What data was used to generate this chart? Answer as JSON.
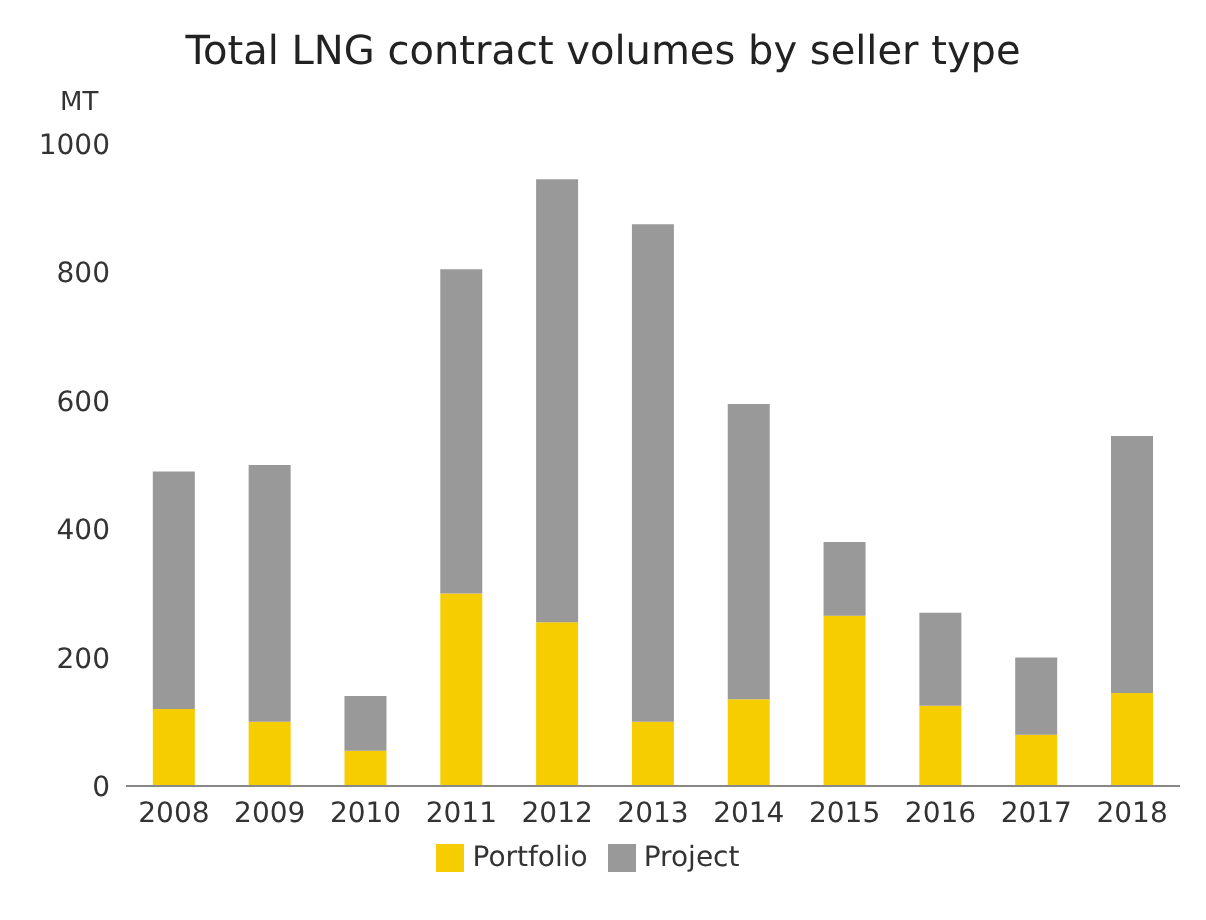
{
  "chart_data": {
    "type": "bar",
    "title": "Total LNG contract volumes by seller type",
    "ylabel": "MT",
    "categories": [
      "2008",
      "2009",
      "2010",
      "2011",
      "2012",
      "2013",
      "2014",
      "2015",
      "2016",
      "2017",
      "2018"
    ],
    "stacked": true,
    "series": [
      {
        "name": "Portfolio",
        "color": "#f5cd00",
        "values": [
          120,
          100,
          55,
          300,
          255,
          100,
          135,
          265,
          125,
          80,
          145
        ]
      },
      {
        "name": "Project",
        "color": "#999999",
        "values": [
          370,
          400,
          85,
          505,
          690,
          775,
          460,
          115,
          145,
          120,
          400
        ]
      }
    ],
    "ylim": [
      0,
      1000
    ],
    "yticks": [
      0,
      200,
      400,
      600,
      800,
      1000
    ],
    "grid": false,
    "legend": "bottom"
  }
}
